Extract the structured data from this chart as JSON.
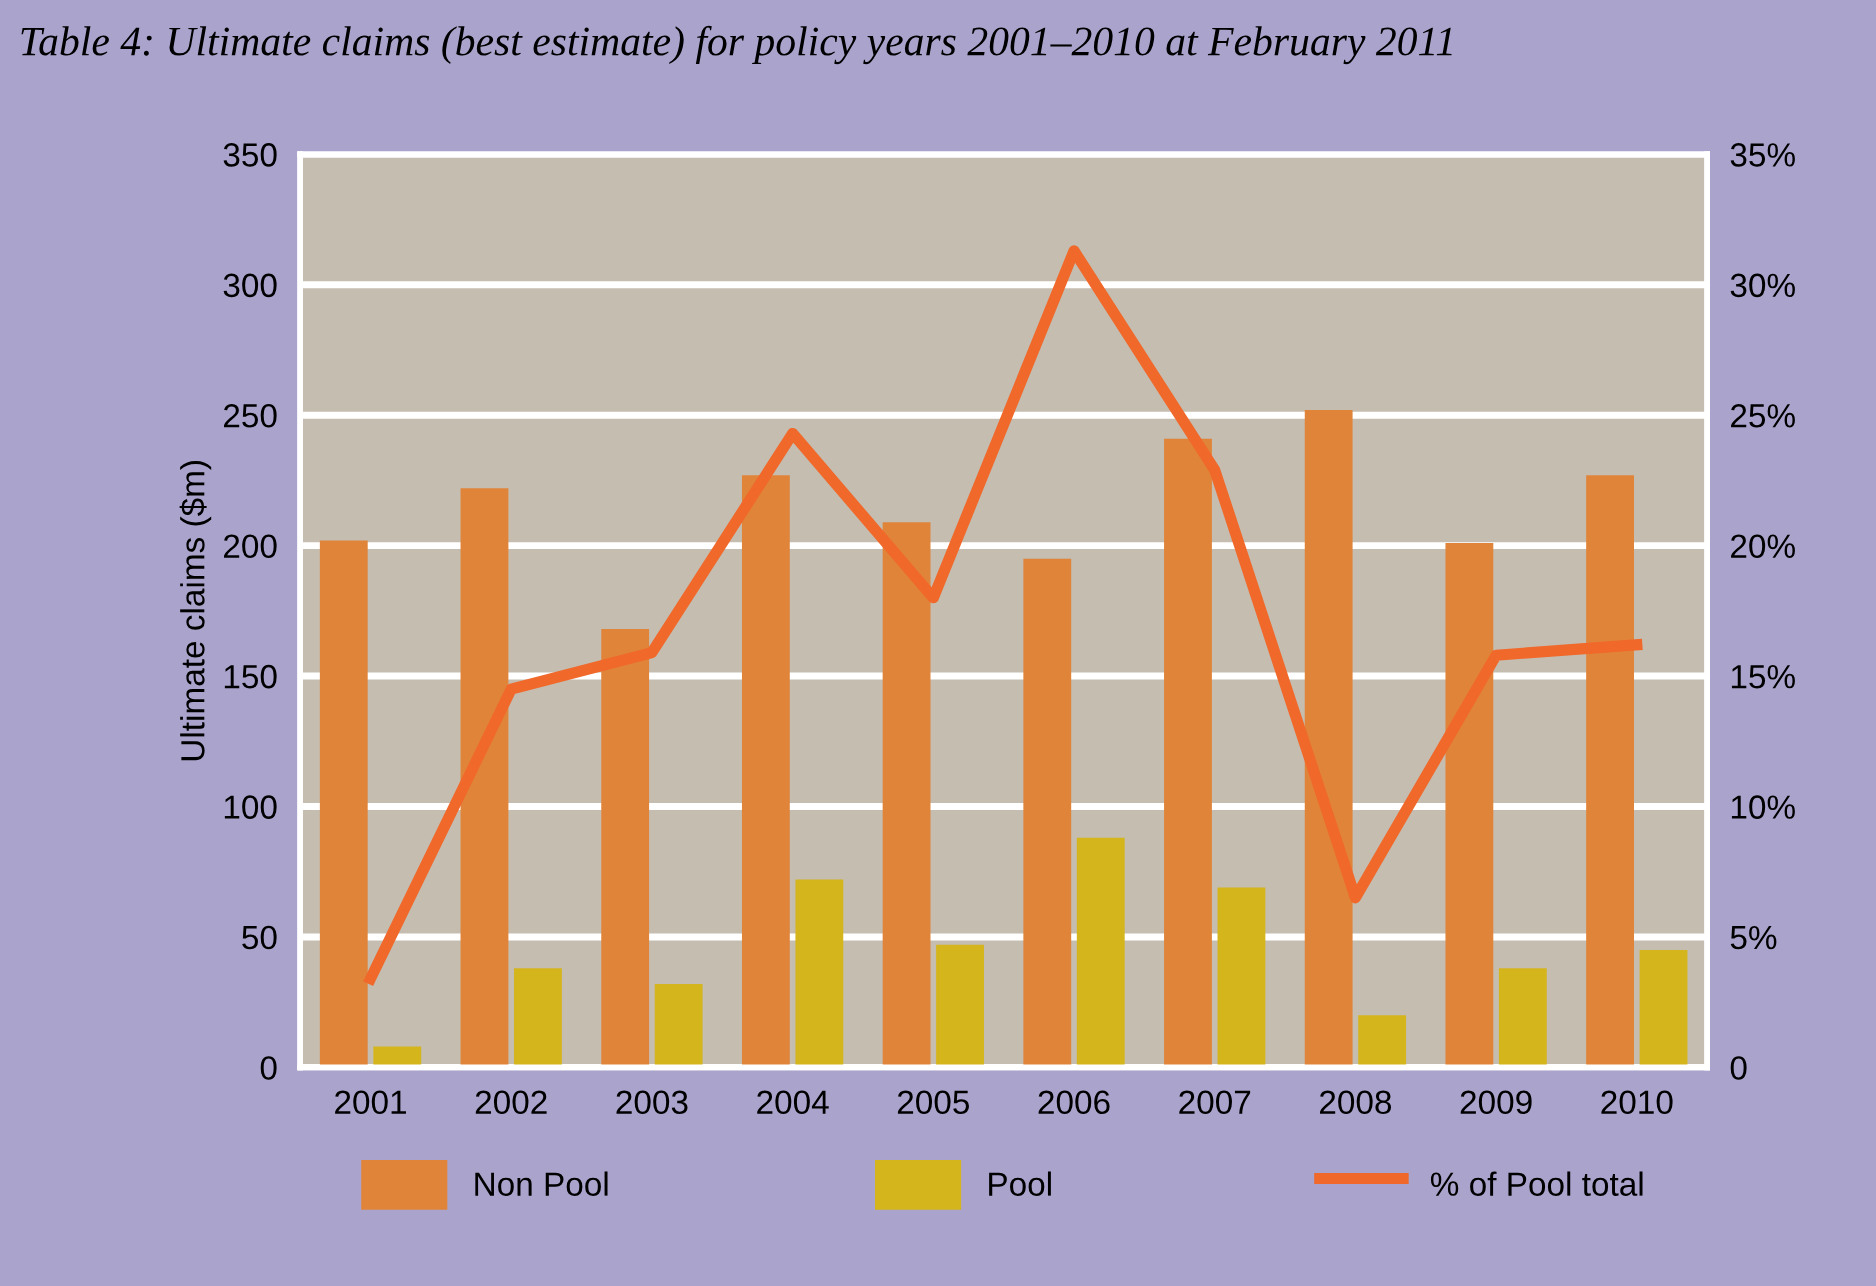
{
  "chart_data": {
    "type": "bar",
    "title": "Table 4: Ultimate claims (best estimate) for policy years 2001–2010 at February 2011",
    "ylabel": "Ultimate claims ($m)",
    "categories": [
      "2001",
      "2002",
      "2003",
      "2004",
      "2005",
      "2006",
      "2007",
      "2008",
      "2009",
      "2010"
    ],
    "series": [
      {
        "name": "Non Pool",
        "color": "#e0843a",
        "values": [
          202,
          222,
          168,
          227,
          209,
          195,
          241,
          252,
          201,
          227
        ]
      },
      {
        "name": "Pool",
        "color": "#d4b51c",
        "values": [
          8,
          38,
          32,
          72,
          47,
          88,
          69,
          20,
          38,
          45
        ]
      },
      {
        "name": "% of Pool total",
        "color": "#f0682a",
        "type": "line",
        "axis": "y2",
        "values": [
          3.4,
          14.5,
          15.9,
          24.3,
          18.0,
          31.3,
          22.9,
          6.5,
          15.8,
          16.2
        ]
      }
    ],
    "ylim": [
      0,
      350
    ],
    "yticks": [
      0,
      50,
      100,
      150,
      200,
      250,
      300,
      350
    ],
    "y2lim": [
      0,
      35
    ],
    "y2ticks": [
      {
        "value": 0,
        "label": "0"
      },
      {
        "value": 5,
        "label": "5%"
      },
      {
        "value": 10,
        "label": "10%"
      },
      {
        "value": 15,
        "label": "15%"
      },
      {
        "value": 20,
        "label": "20%"
      },
      {
        "value": 25,
        "label": "25%"
      },
      {
        "value": 30,
        "label": "30%"
      },
      {
        "value": 35,
        "label": "35%"
      }
    ],
    "grid": "y",
    "legend": "bottom",
    "marker": "none",
    "line_style": "solid"
  }
}
